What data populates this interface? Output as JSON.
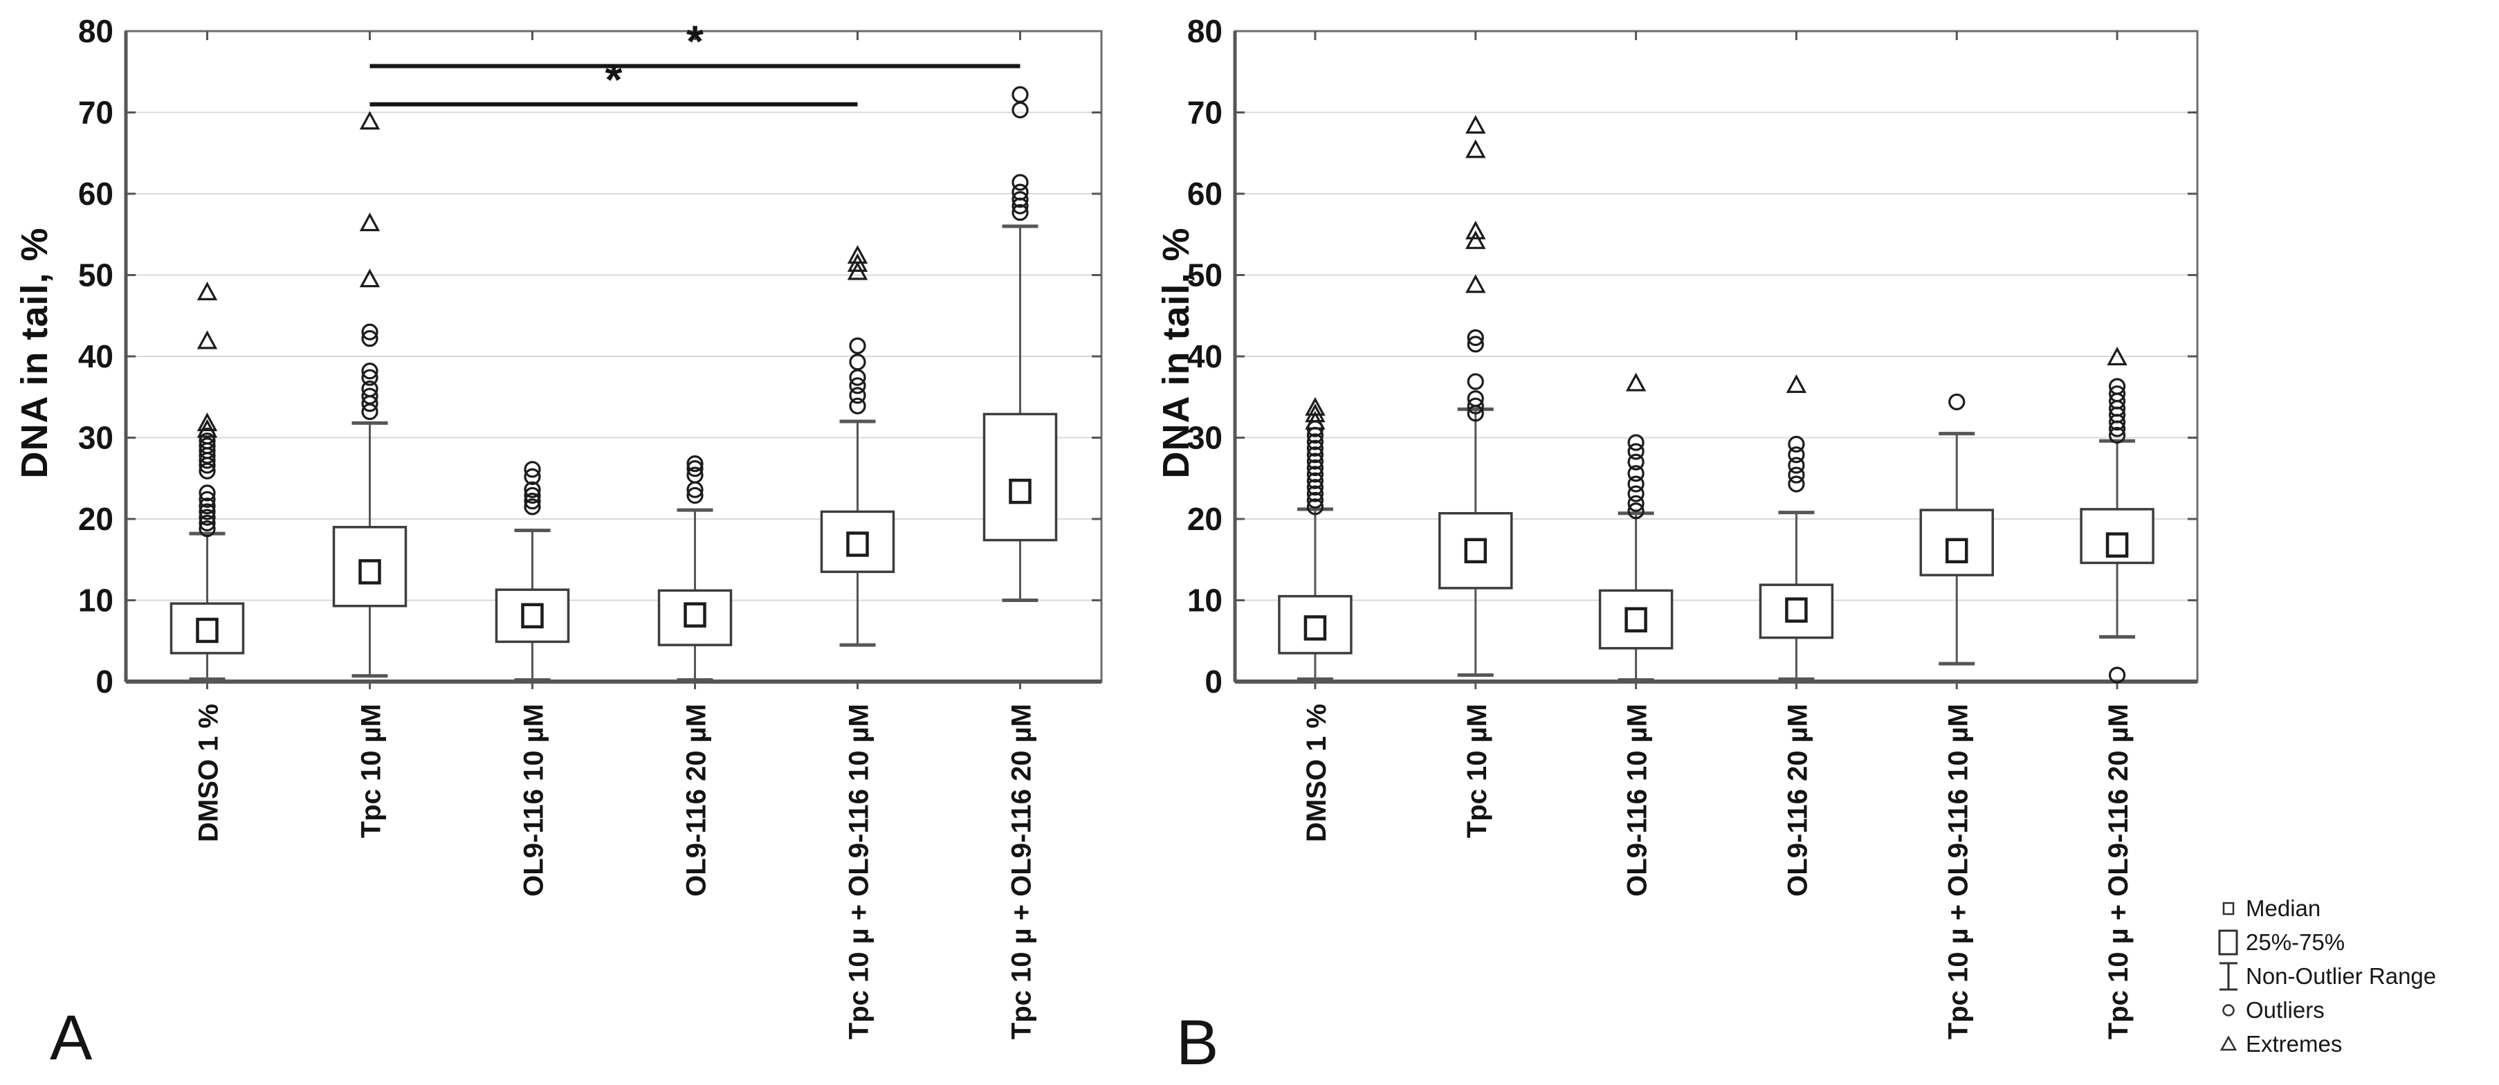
{
  "figure": {
    "type": "comet-assay-boxplot-figure",
    "background": "#ffffff"
  },
  "colors": {
    "text": "#141414",
    "grid": "#d9d9d9",
    "axis": "#565656",
    "border": "#6e6e6e",
    "box_stroke": "#3d3d3d",
    "marker_stroke": "#1c1c1c",
    "significance": "#161616"
  },
  "legend": {
    "position": "bottom-right",
    "items": [
      {
        "symbol": "median-square",
        "label": "Median"
      },
      {
        "symbol": "box-square",
        "label": "25%-75%"
      },
      {
        "symbol": "whisker-ibeam",
        "label": "Non-Outlier Range"
      },
      {
        "symbol": "outlier-circle",
        "label": "Outliers"
      },
      {
        "symbol": "extreme-triangle",
        "label": "Extremes"
      }
    ]
  },
  "chart_data": [
    {
      "type": "box",
      "panel_label": "A",
      "ylabel": "DNA in tail, %",
      "xlabel": "",
      "ylim": [
        0,
        80
      ],
      "yticks": [
        0,
        10,
        20,
        30,
        40,
        50,
        60,
        70,
        80
      ],
      "grid": "horizontal",
      "legend_position": "shared-bottom-right",
      "categories": [
        "DMSO 1 %",
        "Tpc 10 µM",
        "OL9-116 10 µM",
        "OL9-116 20 µM",
        "Tpc 10 µ + OL9-116 10 µM",
        "Tpc 10 µ + OL9-116 20 µM"
      ],
      "boxes": [
        {
          "median": 6.3,
          "q1": 3.5,
          "q3": 9.6,
          "whisker_low": 0.3,
          "whisker_high": 18.2,
          "outliers": [
            18.8,
            19.5,
            20.2,
            20.9,
            21.6,
            22.4,
            23.2,
            25.9,
            26.6,
            27.2,
            27.8,
            28.4,
            29.0,
            29.6,
            30.2
          ],
          "extremes": [
            30.9,
            31.7,
            41.8,
            47.8
          ]
        },
        {
          "median": 13.5,
          "q1": 9.3,
          "q3": 19.0,
          "whisker_low": 0.7,
          "whisker_high": 31.8,
          "outliers": [
            33.2,
            34.2,
            35.1,
            36.0,
            37.4,
            38.2,
            42.2,
            43.0
          ],
          "extremes": [
            49.4,
            56.3,
            68.8
          ]
        },
        {
          "median": 8.1,
          "q1": 4.9,
          "q3": 11.3,
          "whisker_low": 0.2,
          "whisker_high": 18.6,
          "outliers": [
            21.5,
            22.2,
            22.9,
            23.6,
            25.2,
            26.1
          ],
          "extremes": []
        },
        {
          "median": 8.2,
          "q1": 4.5,
          "q3": 11.2,
          "whisker_low": 0.2,
          "whisker_high": 21.1,
          "outliers": [
            22.9,
            23.6,
            25.4,
            26.2,
            26.8
          ],
          "extremes": []
        },
        {
          "median": 16.9,
          "q1": 13.5,
          "q3": 20.9,
          "whisker_low": 4.5,
          "whisker_high": 32.0,
          "outliers": [
            33.9,
            35.2,
            36.4,
            37.4,
            39.3,
            41.3
          ],
          "extremes": [
            50.3,
            51.3,
            52.3
          ]
        },
        {
          "median": 23.4,
          "q1": 17.4,
          "q3": 32.9,
          "whisker_low": 10.0,
          "whisker_high": 56.0,
          "outliers": [
            57.7,
            58.5,
            59.3,
            60.2,
            61.4,
            70.3,
            72.2
          ],
          "extremes": []
        }
      ],
      "significance_bars": [
        {
          "from_index": 1,
          "to_index": 5,
          "y": 75.7,
          "label": "*"
        },
        {
          "from_index": 1,
          "to_index": 4,
          "y": 71.0,
          "label": "*"
        }
      ]
    },
    {
      "type": "box",
      "panel_label": "B",
      "ylabel": "DNA in tail, %",
      "xlabel": "",
      "ylim": [
        0,
        80
      ],
      "yticks": [
        0,
        10,
        20,
        30,
        40,
        50,
        60,
        70,
        80
      ],
      "grid": "horizontal",
      "legend_position": "shared-bottom-right",
      "categories": [
        "DMSO 1 %",
        "Tpc 10 µM",
        "OL9-116 10 µM",
        "OL9-116 20 µM",
        "Tpc 10 µ + OL9-116 10 µM",
        "Tpc 10 µ + OL9-116 20 µM"
      ],
      "boxes": [
        {
          "median": 6.6,
          "q1": 3.5,
          "q3": 10.5,
          "whisker_low": 0.3,
          "whisker_high": 21.2,
          "outliers": [
            21.5,
            22.3,
            23.1,
            23.9,
            24.7,
            25.5,
            26.3,
            27.1,
            27.9,
            28.7,
            29.5,
            30.3,
            31.1
          ],
          "extremes": [
            31.9,
            32.8,
            33.6
          ]
        },
        {
          "median": 16.1,
          "q1": 11.5,
          "q3": 20.7,
          "whisker_low": 0.8,
          "whisker_high": 33.5,
          "outliers": [
            33.0,
            33.9,
            34.8,
            36.9,
            41.5,
            42.3
          ],
          "extremes": [
            48.7,
            54.1,
            55.3,
            65.3,
            68.3
          ]
        },
        {
          "median": 7.6,
          "q1": 4.1,
          "q3": 11.2,
          "whisker_low": 0.2,
          "whisker_high": 20.7,
          "outliers": [
            21.0,
            21.9,
            23.1,
            24.3,
            25.6,
            27.0,
            28.3,
            29.4
          ],
          "extremes": [
            36.6
          ]
        },
        {
          "median": 8.8,
          "q1": 5.4,
          "q3": 11.9,
          "whisker_low": 0.3,
          "whisker_high": 20.8,
          "outliers": [
            24.3,
            25.4,
            26.6,
            27.9,
            29.2
          ],
          "extremes": [
            36.4
          ]
        },
        {
          "median": 16.1,
          "q1": 13.1,
          "q3": 21.1,
          "whisker_low": 2.2,
          "whisker_high": 30.5,
          "outliers": [
            34.4
          ],
          "extremes": []
        },
        {
          "median": 16.8,
          "q1": 14.6,
          "q3": 21.2,
          "whisker_low": 5.5,
          "whisker_high": 29.6,
          "outliers": [
            0.8,
            30.3,
            31.1,
            31.9,
            32.8,
            33.6,
            34.5,
            35.4,
            36.3
          ],
          "extremes": [
            39.8
          ]
        }
      ],
      "significance_bars": []
    }
  ]
}
